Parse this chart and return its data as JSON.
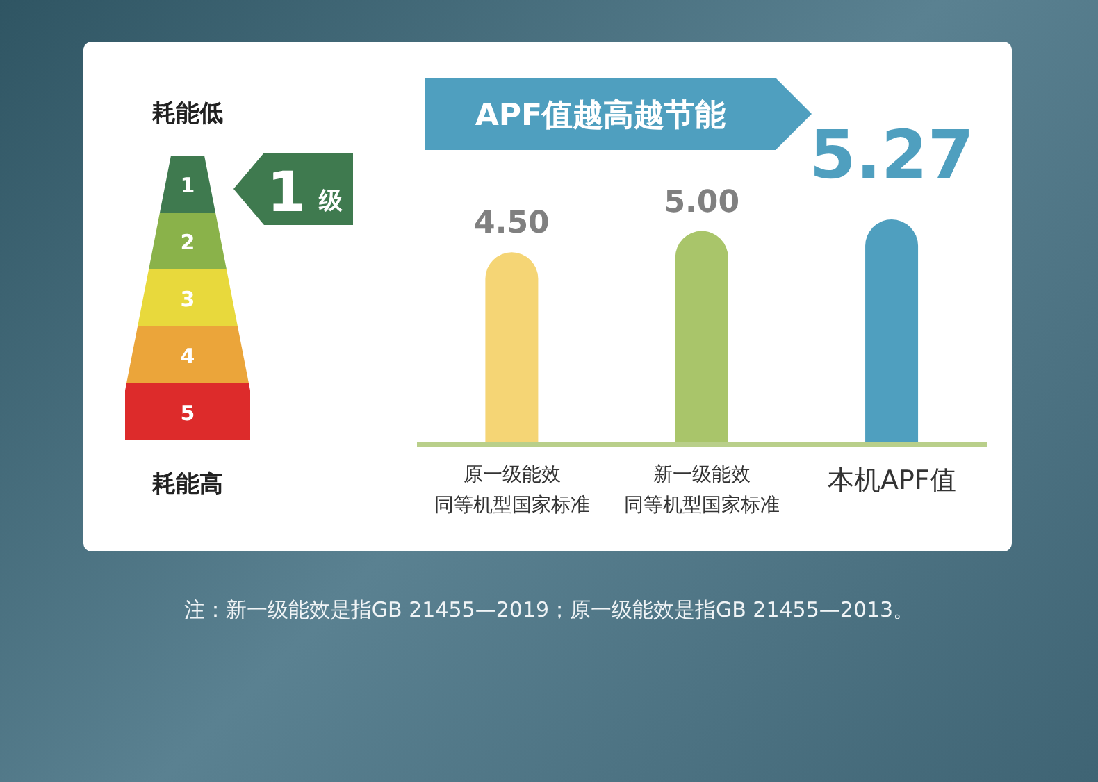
{
  "chart_data": {
    "type": "bar",
    "title": "APF值越高越节能",
    "categories": [
      "原一级能效同等机型国家标准",
      "新一级能效同等机型国家标准",
      "本机APF值"
    ],
    "values": [
      4.5,
      5.0,
      5.27
    ],
    "value_labels": [
      "4.50",
      "5.00",
      "5.27"
    ],
    "colors": [
      "#f5d575",
      "#a9c56a",
      "#4f9fbf"
    ],
    "annotations": [
      "耗能低",
      "耗能高",
      "1级",
      "1",
      "2",
      "3",
      "4",
      "5",
      "注：新一级能效是指GB 21455—2019；原一级能效是指GB 21455—2013。"
    ]
  }
}
